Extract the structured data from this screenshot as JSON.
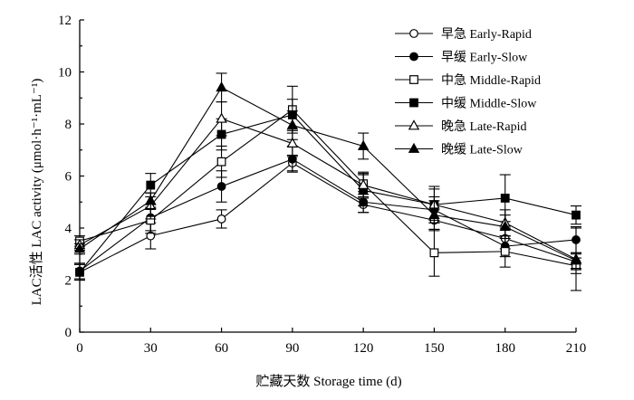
{
  "chart_data": {
    "type": "line",
    "xlabel": "贮藏天数 Storage time (d)",
    "ylabel": "LAC活性 LAC activity (μmol·h⁻¹·mL⁻¹)",
    "x": [
      0,
      30,
      60,
      90,
      120,
      150,
      180,
      210
    ],
    "xlim": [
      0,
      210
    ],
    "ylim": [
      0,
      12
    ],
    "yticks": [
      0,
      2,
      4,
      6,
      8,
      10,
      12
    ],
    "grid": false,
    "legend_position": "top-right",
    "series": [
      {
        "name": "早急 Early-Rapid",
        "marker": "circle-open",
        "values": [
          2.3,
          3.7,
          4.35,
          6.5,
          4.9,
          4.3,
          3.6,
          2.7
        ],
        "errors": [
          0.3,
          0.5,
          0.35,
          0.3,
          0.3,
          0.4,
          0.4,
          0.3
        ]
      },
      {
        "name": "早缓 Early-Slow",
        "marker": "circle-filled",
        "values": [
          2.35,
          4.4,
          5.6,
          6.65,
          5.0,
          4.7,
          3.3,
          3.55
        ],
        "errors": [
          0.3,
          0.5,
          0.6,
          0.5,
          0.4,
          0.5,
          0.4,
          0.5
        ]
      },
      {
        "name": "中急 Middle-Rapid",
        "marker": "square-open",
        "values": [
          3.5,
          4.3,
          6.55,
          8.55,
          5.7,
          3.05,
          3.1,
          2.55
        ],
        "errors": [
          0.2,
          0.5,
          0.6,
          0.9,
          0.4,
          0.9,
          0.6,
          0.3
        ]
      },
      {
        "name": "中缓 Middle-Slow",
        "marker": "square-filled",
        "values": [
          2.3,
          5.65,
          7.6,
          8.35,
          5.45,
          4.9,
          5.15,
          4.5
        ],
        "errors": [
          0.3,
          0.45,
          0.6,
          0.6,
          0.6,
          0.7,
          0.9,
          0.35
        ]
      },
      {
        "name": "晚急 Late-Rapid",
        "marker": "triangle-open",
        "values": [
          3.35,
          4.85,
          8.2,
          7.25,
          5.65,
          4.9,
          4.2,
          2.8
        ],
        "errors": [
          0.2,
          0.5,
          0.65,
          0.5,
          0.5,
          0.6,
          0.5,
          1.2
        ]
      },
      {
        "name": "晚缓 Late-Slow",
        "marker": "triangle-filled",
        "values": [
          3.2,
          5.05,
          9.4,
          7.95,
          7.15,
          4.5,
          4.05,
          2.75
        ],
        "errors": [
          0.2,
          0.3,
          0.55,
          0.55,
          0.5,
          0.55,
          0.45,
          0.3
        ]
      }
    ]
  }
}
